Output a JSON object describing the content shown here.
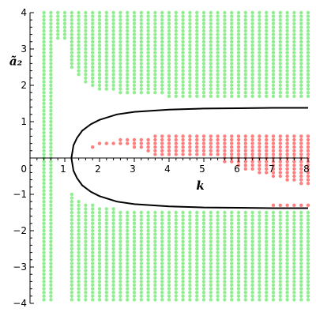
{
  "chart_data": {
    "type": "scatter",
    "title": "",
    "xlabel": "k",
    "ylabel": "ã₂",
    "xlim": [
      0,
      8
    ],
    "ylim": [
      -4,
      4
    ],
    "x_ticks": [
      1,
      2,
      3,
      4,
      5,
      6,
      7,
      8
    ],
    "x_tick_labels": [
      "1",
      "2",
      "3",
      "4",
      "5",
      "6",
      "7",
      "8"
    ],
    "x_origin_label": "0",
    "y_ticks": [
      -4,
      -3,
      -2,
      -1,
      1,
      2,
      3,
      4
    ],
    "y_tick_labels": [
      "−4",
      "−3",
      "−2",
      "−1",
      "1",
      "2",
      "3",
      "4"
    ],
    "grid": false,
    "colors": {
      "green": "#90ee90",
      "red": "#ff7f7f",
      "curve": "#000000"
    },
    "green_region": {
      "x_columns": {
        "start": 0.4,
        "end": 8.0,
        "step": 0.2
      },
      "y_step": 0.1,
      "segments": [
        {
          "x_range": [
            0.4,
            0.7
          ],
          "y_ranges": [
            [
              -3.9,
              4.0
            ]
          ]
        },
        {
          "x_range": [
            0.8,
            1.0
          ],
          "y_ranges": [
            [
              3.3,
              4.0
            ]
          ]
        },
        {
          "x_range": [
            1.2,
            8.0
          ],
          "y_ranges": [
            [
              "upper_boundary",
              4.0
            ],
            [
              -3.9,
              "lower_boundary"
            ]
          ]
        }
      ],
      "upper_boundary_points": [
        [
          1.0,
          2.7
        ],
        [
          1.2,
          2.5
        ],
        [
          1.4,
          2.3
        ],
        [
          1.6,
          2.1
        ],
        [
          1.8,
          2.0
        ],
        [
          2.0,
          1.9
        ],
        [
          2.5,
          1.8
        ],
        [
          3.0,
          1.75
        ],
        [
          4.0,
          1.7
        ],
        [
          8.0,
          1.7
        ]
      ],
      "lower_boundary_points": [
        [
          1.2,
          -1.0
        ],
        [
          1.4,
          -1.15
        ],
        [
          1.6,
          -1.25
        ],
        [
          2.0,
          -1.35
        ],
        [
          3.0,
          -1.45
        ],
        [
          4.0,
          -1.5
        ],
        [
          8.0,
          -1.5
        ]
      ]
    },
    "red_region": {
      "y_step": 0.1,
      "columns": [
        {
          "x": 1.8,
          "y_ranges": [
            [
              0.3,
              0.3
            ]
          ]
        },
        {
          "x": 2.0,
          "y_ranges": [
            [
              0.4,
              0.4
            ]
          ]
        },
        {
          "x": 2.2,
          "y_ranges": [
            [
              0.4,
              0.4
            ]
          ]
        },
        {
          "x": 2.4,
          "y_ranges": [
            [
              0.4,
              0.4
            ]
          ]
        },
        {
          "x": 2.6,
          "y_ranges": [
            [
              0.4,
              0.5
            ]
          ]
        },
        {
          "x": 2.8,
          "y_ranges": [
            [
              0.4,
              0.5
            ]
          ]
        },
        {
          "x": 3.0,
          "y_ranges": [
            [
              0.3,
              0.5
            ]
          ]
        },
        {
          "x": 3.2,
          "y_ranges": [
            [
              0.3,
              0.5
            ]
          ]
        },
        {
          "x": 3.4,
          "y_ranges": [
            [
              0.2,
              0.5
            ]
          ]
        },
        {
          "x": 3.6,
          "y_ranges": [
            [
              0.1,
              0.6
            ]
          ]
        },
        {
          "x": 3.8,
          "y_ranges": [
            [
              0.1,
              0.6
            ]
          ]
        },
        {
          "x": 4.0,
          "y_ranges": [
            [
              0.1,
              0.6
            ]
          ]
        },
        {
          "x": 4.2,
          "y_ranges": [
            [
              0.1,
              0.6
            ]
          ]
        },
        {
          "x": 4.4,
          "y_ranges": [
            [
              0.1,
              0.6
            ]
          ]
        },
        {
          "x": 4.6,
          "y_ranges": [
            [
              0.1,
              0.6
            ]
          ]
        },
        {
          "x": 4.8,
          "y_ranges": [
            [
              0.1,
              0.6
            ]
          ]
        },
        {
          "x": 5.0,
          "y_ranges": [
            [
              0.1,
              0.6
            ]
          ]
        },
        {
          "x": 5.2,
          "y_ranges": [
            [
              0.1,
              0.6
            ]
          ]
        },
        {
          "x": 5.4,
          "y_ranges": [
            [
              0.1,
              0.6
            ]
          ]
        },
        {
          "x": 5.6,
          "y_ranges": [
            [
              -0.1,
              0.6
            ]
          ]
        },
        {
          "x": 5.8,
          "y_ranges": [
            [
              -0.1,
              0.6
            ]
          ]
        },
        {
          "x": 6.0,
          "y_ranges": [
            [
              -0.2,
              0.6
            ]
          ]
        },
        {
          "x": 6.2,
          "y_ranges": [
            [
              -0.3,
              0.6
            ]
          ]
        },
        {
          "x": 6.4,
          "y_ranges": [
            [
              -0.3,
              0.6
            ]
          ]
        },
        {
          "x": 6.6,
          "y_ranges": [
            [
              -0.4,
              0.6
            ]
          ]
        },
        {
          "x": 6.8,
          "y_ranges": [
            [
              -0.4,
              0.6
            ]
          ]
        },
        {
          "x": 7.0,
          "y_ranges": [
            [
              -0.5,
              0.6
            ],
            [
              -1.3,
              -1.3
            ]
          ]
        },
        {
          "x": 7.2,
          "y_ranges": [
            [
              -0.5,
              0.6
            ],
            [
              -1.3,
              -1.3
            ]
          ]
        },
        {
          "x": 7.4,
          "y_ranges": [
            [
              -0.6,
              0.6
            ],
            [
              -1.3,
              -1.3
            ]
          ]
        },
        {
          "x": 7.6,
          "y_ranges": [
            [
              -0.6,
              0.6
            ],
            [
              -1.3,
              -1.3
            ]
          ]
        },
        {
          "x": 7.8,
          "y_ranges": [
            [
              -0.7,
              0.6
            ],
            [
              -1.3,
              -1.3
            ]
          ]
        },
        {
          "x": 8.0,
          "y_ranges": [
            [
              -0.7,
              0.6
            ],
            [
              -1.3,
              -1.3
            ]
          ]
        }
      ]
    },
    "curves": [
      {
        "x": [
          1.19,
          1.25,
          1.35,
          1.5,
          1.75,
          2.0,
          2.5,
          3.0,
          4.0,
          5.0,
          6.0,
          7.0,
          8.0
        ],
        "y": [
          0.0,
          0.35,
          0.55,
          0.75,
          0.93,
          1.05,
          1.2,
          1.27,
          1.33,
          1.36,
          1.37,
          1.38,
          1.38
        ]
      },
      {
        "x": [
          1.19,
          1.25,
          1.35,
          1.5,
          1.75,
          2.0,
          2.5,
          3.0,
          4.0,
          5.0,
          6.0,
          7.0,
          8.0
        ],
        "y": [
          0.0,
          -0.35,
          -0.55,
          -0.75,
          -0.93,
          -1.05,
          -1.2,
          -1.27,
          -1.33,
          -1.36,
          -1.37,
          -1.38,
          -1.38
        ]
      }
    ]
  }
}
